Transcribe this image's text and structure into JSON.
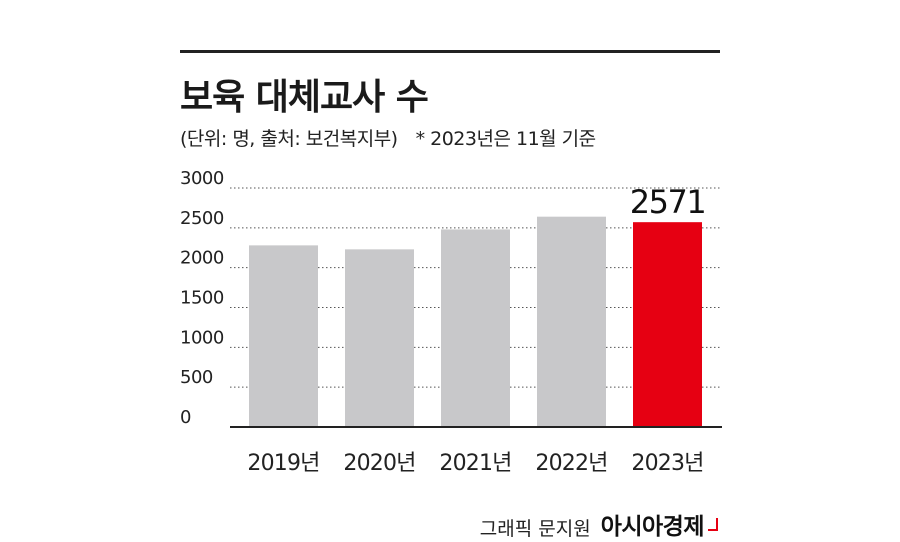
{
  "header": {
    "title": "보육 대체교사 수",
    "source": "(단위: 명, 출처: 보건복지부)",
    "note": "* 2023년은 11월 기준"
  },
  "chart_data": {
    "type": "bar",
    "title": "보육 대체교사 수",
    "categories": [
      "2019년",
      "2020년",
      "2021년",
      "2022년",
      "2023년"
    ],
    "values": [
      2280,
      2230,
      2480,
      2640,
      2571
    ],
    "ylim": [
      0,
      3000
    ],
    "yticks": [
      "0",
      "500",
      "1000",
      "1500",
      "2000",
      "2500",
      "3000"
    ],
    "ytick_values": [
      0,
      500,
      1000,
      1500,
      2000,
      2500,
      3000
    ],
    "grid": true,
    "bar_color": "#c8c8ca",
    "highlight_color": "#e60012",
    "highlight_index": 4,
    "highlight_label": "2571"
  },
  "credit": {
    "author": "그래픽 문지원",
    "brand": "아시아경제"
  }
}
